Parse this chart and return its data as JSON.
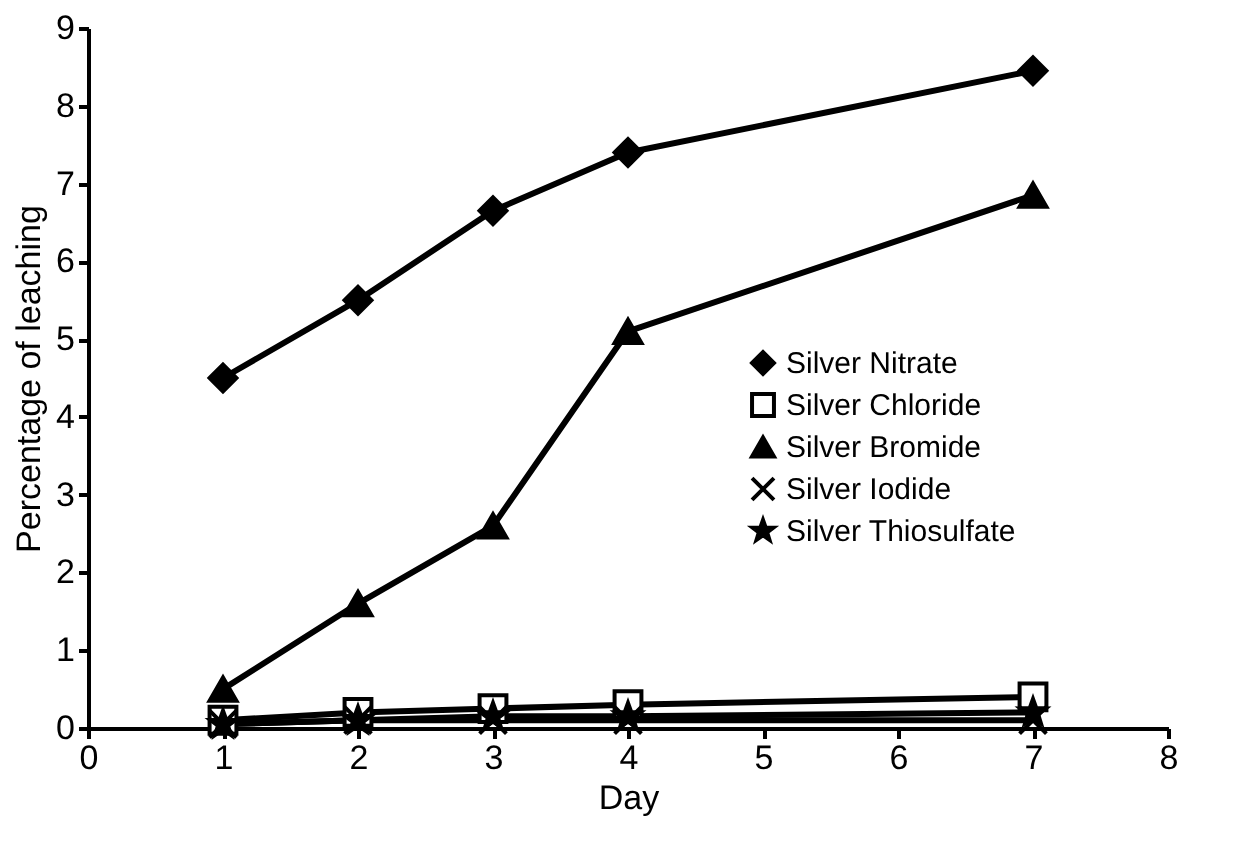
{
  "chart_data": {
    "type": "line",
    "xlabel": "Day",
    "ylabel": "Percentage of leaching",
    "x": [
      1,
      2,
      3,
      4,
      7
    ],
    "xlim": [
      0,
      8
    ],
    "xticks": [
      0,
      1,
      2,
      3,
      4,
      5,
      6,
      7,
      8
    ],
    "ylim": [
      0,
      9
    ],
    "yticks": [
      0,
      1,
      2,
      3,
      4,
      5,
      6,
      7,
      8,
      9
    ],
    "grid": false,
    "legend": "right",
    "line_style": "solid",
    "series": [
      {
        "name": "Silver Nitrate",
        "color": "#000000",
        "marker": "diamond",
        "values": [
          4.5,
          5.5,
          6.65,
          7.4,
          8.45
        ]
      },
      {
        "name": "Silver Chloride",
        "color": "#000000",
        "marker": "square",
        "values": [
          0.1,
          0.2,
          0.25,
          0.3,
          0.4
        ]
      },
      {
        "name": "Silver Bromide",
        "color": "#000000",
        "marker": "triangle",
        "values": [
          0.5,
          1.6,
          2.6,
          5.1,
          6.85
        ]
      },
      {
        "name": "Silver Iodide",
        "color": "#000000",
        "marker": "cross",
        "values": [
          0.05,
          0.1,
          0.1,
          0.1,
          0.1
        ]
      },
      {
        "name": "Silver Thiosulfate",
        "color": "#000000",
        "marker": "star",
        "values": [
          0.05,
          0.1,
          0.15,
          0.15,
          0.2
        ]
      }
    ]
  }
}
